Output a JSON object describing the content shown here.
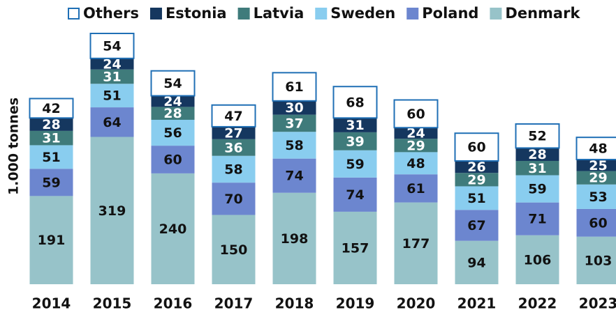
{
  "chart_data": {
    "type": "bar",
    "stacked": true,
    "ylabel": "1.000 tonnes",
    "categories": [
      "2014",
      "2015",
      "2016",
      "2017",
      "2018",
      "2019",
      "2020",
      "2021",
      "2022",
      "2023"
    ],
    "series": [
      {
        "name": "Denmark",
        "color": "#97c3c9",
        "label_color": "#111111",
        "values": [
          191,
          319,
          240,
          150,
          198,
          157,
          177,
          94,
          106,
          103
        ]
      },
      {
        "name": "Poland",
        "color": "#6c86cf",
        "label_color": "#111111",
        "values": [
          59,
          64,
          60,
          70,
          74,
          74,
          61,
          67,
          71,
          60
        ]
      },
      {
        "name": "Sweden",
        "color": "#89cdef",
        "label_color": "#111111",
        "values": [
          51,
          51,
          56,
          58,
          58,
          59,
          48,
          51,
          59,
          53
        ]
      },
      {
        "name": "Latvia",
        "color": "#3f7b7b",
        "label_color": "#ffffff",
        "values": [
          31,
          31,
          28,
          36,
          37,
          39,
          29,
          29,
          31,
          29
        ]
      },
      {
        "name": "Estonia",
        "color": "#15375f",
        "label_color": "#ffffff",
        "values": [
          28,
          24,
          24,
          27,
          30,
          31,
          24,
          26,
          28,
          25
        ]
      },
      {
        "name": "Others",
        "color": "#ffffff",
        "border_color": "#1f6fb5",
        "label_color": "#111111",
        "values": [
          42,
          54,
          54,
          47,
          61,
          68,
          60,
          60,
          52,
          48
        ]
      }
    ],
    "legend": "top"
  }
}
